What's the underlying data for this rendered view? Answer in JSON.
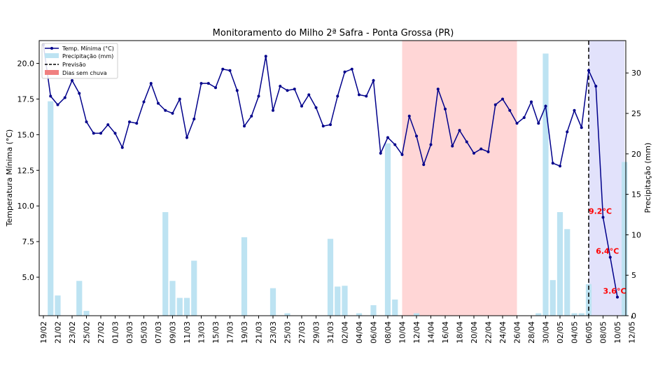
{
  "chart_data": {
    "type": "line+bar",
    "title": "Monitoramento do Milho 2ª Safra - Ponta Grossa (PR)",
    "ylabel_left": "Temperatura Mínima (°C)",
    "ylabel_right": "Precipitação (mm)",
    "ylim_left": [
      2.3,
      21.6
    ],
    "ylim_right": [
      0,
      34
    ],
    "yticks_left": [
      "5.0",
      "7.5",
      "10.0",
      "12.5",
      "15.0",
      "17.5",
      "20.0"
    ],
    "yticks_right": [
      "0",
      "5",
      "10",
      "15",
      "20",
      "25",
      "30"
    ],
    "x_tick_labels": [
      "19/02",
      "21/02",
      "23/02",
      "25/02",
      "27/02",
      "01/03",
      "03/03",
      "05/03",
      "07/03",
      "09/03",
      "11/03",
      "13/03",
      "15/03",
      "17/03",
      "19/03",
      "21/03",
      "23/03",
      "25/03",
      "27/03",
      "29/03",
      "31/03",
      "02/04",
      "04/04",
      "06/04",
      "08/04",
      "10/04",
      "12/04",
      "14/04",
      "16/04",
      "18/04",
      "20/04",
      "22/04",
      "24/04",
      "26/04",
      "28/04",
      "30/04",
      "02/05",
      "04/05",
      "06/05",
      "08/05",
      "10/05",
      "12/05"
    ],
    "series": [
      {
        "name": "Temp. Mínima (°C)",
        "type": "line",
        "axis": "left",
        "color": "#00008b",
        "values": [
          21.3,
          17.7,
          17.1,
          17.6,
          18.8,
          17.9,
          15.9,
          15.1,
          15.1,
          15.7,
          15.1,
          14.1,
          15.9,
          15.8,
          17.3,
          18.6,
          17.2,
          16.7,
          16.5,
          17.5,
          14.8,
          16.1,
          18.6,
          18.6,
          18.3,
          19.6,
          19.5,
          18.1,
          15.6,
          16.3,
          17.7,
          20.5,
          16.7,
          18.4,
          18.1,
          18.2,
          17.0,
          17.8,
          16.9,
          15.6,
          15.7,
          17.7,
          19.4,
          19.6,
          17.8,
          17.7,
          18.8,
          13.7,
          14.8,
          14.3,
          13.6,
          16.3,
          14.9,
          12.9,
          14.3,
          18.2,
          16.8,
          14.2,
          15.3,
          14.5,
          13.7,
          14.0,
          13.8,
          17.1,
          17.5,
          16.7,
          15.8,
          16.2,
          17.3,
          15.8,
          17.0,
          13.0,
          12.8,
          15.2,
          16.7,
          15.5
        ]
      },
      {
        "name": "Previsão",
        "type": "line",
        "axis": "left",
        "color": "#00008b",
        "start_index": 75,
        "values": [
          15.5,
          19.5,
          18.4,
          9.2,
          6.4,
          3.6
        ]
      },
      {
        "name": "Precipitação (mm)",
        "type": "bar",
        "axis": "right",
        "color": "#bde3f2",
        "values": [
          0,
          26.5,
          2.5,
          0,
          0,
          4.3,
          0.6,
          0,
          0,
          0,
          0,
          0,
          0,
          0,
          0,
          0,
          0,
          12.8,
          4.3,
          2.2,
          2.2,
          6.8,
          0,
          0,
          0,
          0,
          0,
          0,
          9.7,
          0,
          0,
          0,
          3.4,
          0,
          0.3,
          0,
          0,
          0,
          0,
          0,
          9.5,
          3.6,
          3.7,
          0,
          0.3,
          0,
          1.3,
          0,
          21.3,
          2.0,
          0,
          0,
          0.3,
          0,
          0,
          0,
          0,
          0,
          0,
          0,
          0,
          0,
          0,
          0,
          0,
          0,
          0,
          0,
          0,
          0.3,
          32.4,
          4.4,
          12.8,
          10.7,
          0.3,
          0.3,
          3.9,
          0,
          0,
          0,
          0,
          19.0,
          0,
          0,
          0,
          0
        ]
      }
    ],
    "legend": {
      "position": "top-left",
      "entries": [
        "Temp. Mínima (°C)",
        "Precipitação (mm)",
        "Previsão",
        "Dias sem chuva"
      ]
    },
    "shaded_regions": [
      {
        "label": "Dias sem chuva",
        "from_index": 50,
        "to_index": 66,
        "color": "#ffd6d6"
      },
      {
        "label": "",
        "from_index": 76,
        "to_index": 81,
        "color": "#e2e2fb"
      }
    ],
    "forecast_line_index": 76,
    "annotations": [
      {
        "text": "9.2°C",
        "index": 78,
        "value": 9.2
      },
      {
        "text": "6.4°C",
        "index": 79,
        "value": 6.4
      },
      {
        "text": "3.6°C",
        "index": 80,
        "value": 3.6
      }
    ],
    "annotation_color": "#ff0000"
  }
}
